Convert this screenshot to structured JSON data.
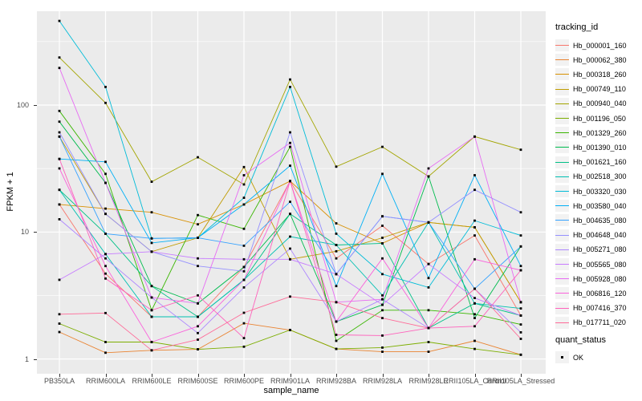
{
  "chart_data": {
    "type": "line",
    "title": "",
    "xlabel": "sample_name",
    "ylabel": "FPKM + 1",
    "yscale": "log10",
    "ylim": [
      1,
      550
    ],
    "grid": true,
    "legend_position": "right",
    "point_shape": "black-square",
    "y_ticks": [
      1,
      10,
      100
    ],
    "y_minor_ticks": [
      3.162,
      31.62,
      316.2
    ],
    "categories": [
      "PB350LA",
      "RRIM600LA",
      "RRIM600LE",
      "RRIM600SE",
      "RRIM600PE",
      "RRIM901LA",
      "RRIM928BA",
      "RRIM928LA",
      "RRIM928LE",
      "RRII105LA_Control",
      "RRII105LA_Stressed"
    ],
    "legend": {
      "color_title": "tracking_id",
      "shape_title": "quant_status",
      "shape_items": [
        "OK"
      ]
    },
    "series": [
      {
        "name": "Hb_000001_160",
        "color": "#F8766D",
        "values": [
          16.5,
          4.7,
          2.15,
          2.15,
          5.3,
          25.2,
          6.2,
          11.2,
          5.6,
          9.4,
          2.2
        ]
      },
      {
        "name": "Hb_000062_380",
        "color": "#EA8331",
        "values": [
          1.63,
          1.12,
          1.17,
          1.19,
          1.91,
          1.69,
          1.2,
          1.14,
          1.14,
          1.39,
          1.08
        ]
      },
      {
        "name": "Hb_000318_260",
        "color": "#D89000",
        "values": [
          16.5,
          15.3,
          14.3,
          11.5,
          16.5,
          25.2,
          11.7,
          8.15,
          11.9,
          10.9,
          2.8
        ]
      },
      {
        "name": "Hb_000749_110",
        "color": "#C09B00",
        "values": [
          56.5,
          13.9,
          7.0,
          9.0,
          32.5,
          6.1,
          7.05,
          9.0,
          11.9,
          10.9,
          2.8
        ]
      },
      {
        "name": "Hb_000940_040",
        "color": "#A3A500",
        "values": [
          237,
          104,
          24.9,
          38.8,
          23.7,
          159,
          32.7,
          46.9,
          27.4,
          56.5,
          44.5
        ]
      },
      {
        "name": "Hb_001196_050",
        "color": "#7CAE00",
        "values": [
          1.9,
          1.36,
          1.36,
          1.19,
          1.25,
          1.69,
          1.2,
          1.23,
          1.36,
          1.2,
          1.08
        ]
      },
      {
        "name": "Hb_001329_260",
        "color": "#39B600",
        "values": [
          89.9,
          28.7,
          2.42,
          13.6,
          10.6,
          46.9,
          1.39,
          2.42,
          2.42,
          2.25,
          1.87
        ]
      },
      {
        "name": "Hb_001390_010",
        "color": "#00BB4E",
        "values": [
          74,
          24.4,
          3.75,
          2.74,
          5.3,
          13.9,
          1.97,
          2.67,
          27.4,
          2.1,
          7.7
        ]
      },
      {
        "name": "Hb_001621_160",
        "color": "#00C087",
        "values": [
          21.5,
          9.7,
          3.75,
          2.15,
          4.2,
          13.9,
          7.9,
          8.15,
          1.75,
          2.74,
          2.2
        ]
      },
      {
        "name": "Hb_002518_300",
        "color": "#00C0B2",
        "values": [
          21.5,
          6.7,
          2.15,
          2.15,
          4.2,
          9.2,
          7.9,
          3.17,
          11.9,
          2.74,
          2.5
        ]
      },
      {
        "name": "Hb_003320_030",
        "color": "#00BCD8",
        "values": [
          460,
          139,
          8.9,
          9.0,
          18.6,
          139,
          9.7,
          4.66,
          3.66,
          12.3,
          9.4
        ]
      },
      {
        "name": "Hb_003580_040",
        "color": "#00B0F6",
        "values": [
          37.6,
          35.7,
          8.2,
          9.0,
          16.5,
          33.3,
          3.75,
          28.7,
          4.34,
          28.0,
          5.4
        ]
      },
      {
        "name": "Hb_004635_080",
        "color": "#35A2FF",
        "values": [
          56.5,
          9.7,
          8.9,
          9.0,
          7.8,
          17.3,
          4.66,
          13.3,
          11.9,
          3.57,
          7.7
        ]
      },
      {
        "name": "Hb_004648_040",
        "color": "#9590FF",
        "values": [
          61,
          13.9,
          7.0,
          5.4,
          4.9,
          61,
          4.66,
          13.3,
          11.9,
          21.5,
          14.3
        ]
      },
      {
        "name": "Hb_005271_080",
        "color": "#AE87FF",
        "values": [
          12.6,
          6.2,
          3.05,
          1.6,
          3.66,
          7.4,
          1.97,
          2.95,
          1.75,
          3.57,
          1.62
        ]
      },
      {
        "name": "Hb_005565_080",
        "color": "#C77CFF",
        "values": [
          4.2,
          6.7,
          7.0,
          6.2,
          6.1,
          6.1,
          4.66,
          2.67,
          5.6,
          3.02,
          2.2
        ]
      },
      {
        "name": "Hb_005928_080",
        "color": "#E76BF3",
        "values": [
          196,
          24.4,
          3.05,
          2.74,
          28.0,
          50.3,
          2.8,
          2.95,
          31.7,
          56.5,
          2.8
        ]
      },
      {
        "name": "Hb_006816_120",
        "color": "#FA62DB",
        "values": [
          31.7,
          5.4,
          1.36,
          1.81,
          4.2,
          25.2,
          1.97,
          6.2,
          1.75,
          6.1,
          5.0
        ]
      },
      {
        "name": "Hb_007416_370",
        "color": "#FF62BC",
        "values": [
          37.6,
          4.3,
          2.42,
          3.17,
          1.46,
          25.2,
          1.55,
          1.53,
          1.75,
          1.81,
          5.0
        ]
      },
      {
        "name": "Hb_017711_020",
        "color": "#FF6A98",
        "values": [
          2.25,
          2.3,
          1.17,
          1.42,
          2.31,
          3.1,
          2.8,
          2.1,
          1.75,
          3.57,
          1.44
        ]
      }
    ]
  },
  "colors": {
    "background": "#FFFFFF",
    "panel_bg": "#EBEBEB",
    "grid": "#FFFFFF",
    "tick_text": "#4D4D4D",
    "axis_title": "#000000",
    "point": "#000000",
    "legend_key_bg": "#F2F2F2"
  }
}
